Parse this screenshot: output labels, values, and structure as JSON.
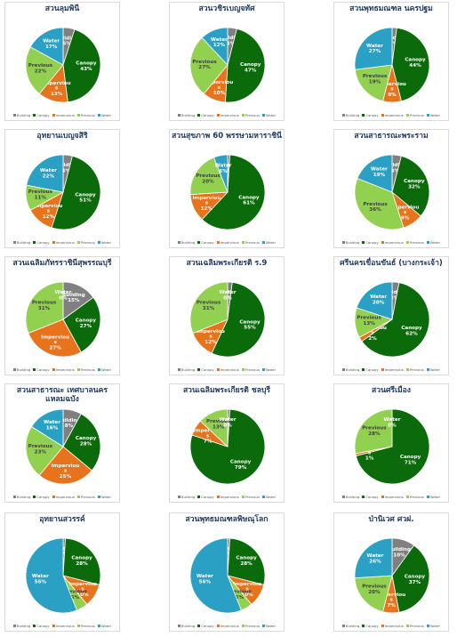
{
  "colors": {
    "Building": "#808080",
    "Canopy": "#0b6b0b",
    "Impervious": "#e8731d",
    "Previous": "#92d050",
    "Water": "#2aa1c4"
  },
  "legend_labels": [
    "Building",
    "Canopy",
    "Impervious",
    "Previous",
    "Water"
  ],
  "chart_data": [
    {
      "type": "pie",
      "title": "สวนลุมพินี",
      "slices": [
        {
          "name": "Building",
          "label": "Building",
          "pct_text": "5%",
          "value": 5
        },
        {
          "name": "Canopy",
          "label": "Canopy",
          "pct_text": "43%",
          "value": 43
        },
        {
          "name": "Impervious",
          "label": "Imperviou\ns",
          "pct_text": "13%",
          "value": 13
        },
        {
          "name": "Previous",
          "label": "Previous",
          "pct_text": "22%",
          "value": 22
        },
        {
          "name": "Water",
          "label": "Water",
          "pct_text": "17%",
          "value": 17
        }
      ]
    },
    {
      "type": "pie",
      "title": "สวนวชิรเบญจทัศ",
      "slices": [
        {
          "name": "Building",
          "label": "Building",
          "pct_text": "4%",
          "value": 4
        },
        {
          "name": "Canopy",
          "label": "Canopy",
          "pct_text": "47%",
          "value": 47
        },
        {
          "name": "Impervious",
          "label": "Imperviou\ns",
          "pct_text": "10%",
          "value": 10
        },
        {
          "name": "Previous",
          "label": "Previous",
          "pct_text": "27%",
          "value": 27
        },
        {
          "name": "Water",
          "label": "Water",
          "pct_text": "12%",
          "value": 12
        }
      ]
    },
    {
      "type": "pie",
      "title": "สวนพุทธมณฑล นครปฐม",
      "slices": [
        {
          "name": "Building",
          "label": "Building",
          "pct_text": "2%",
          "value": 2
        },
        {
          "name": "Canopy",
          "label": "Canopy",
          "pct_text": "44%",
          "value": 44
        },
        {
          "name": "Impervious",
          "label": "Imperviou\ns",
          "pct_text": "8%",
          "value": 8
        },
        {
          "name": "Previous",
          "label": "Previous",
          "pct_text": "19%",
          "value": 19
        },
        {
          "name": "Water",
          "label": "Water",
          "pct_text": "27%",
          "value": 27
        }
      ]
    },
    {
      "type": "pie",
      "title": "อุทยานเบญจสิริ",
      "slices": [
        {
          "name": "Building",
          "label": "Building",
          "pct_text": "4%",
          "value": 4
        },
        {
          "name": "Canopy",
          "label": "Canopy",
          "pct_text": "51%",
          "value": 51
        },
        {
          "name": "Impervious",
          "label": "Imperviou\ns",
          "pct_text": "12%",
          "value": 12
        },
        {
          "name": "Previous",
          "label": "Previous",
          "pct_text": "11%",
          "value": 11
        },
        {
          "name": "Water",
          "label": "Water",
          "pct_text": "22%",
          "value": 22
        }
      ]
    },
    {
      "type": "pie",
      "title": "สวนสุขภาพ 60 พรรษามหาราชินี",
      "slices": [
        {
          "name": "Building",
          "label": "Building",
          "pct_text": "1%",
          "value": 1
        },
        {
          "name": "Canopy",
          "label": "Canopy",
          "pct_text": "61%",
          "value": 61
        },
        {
          "name": "Impervious",
          "label": "Imperviou\ns",
          "pct_text": "12%",
          "value": 12
        },
        {
          "name": "Previous",
          "label": "Previous",
          "pct_text": "20%",
          "value": 20
        },
        {
          "name": "Water",
          "label": "Water",
          "pct_text": "6%",
          "value": 6
        }
      ]
    },
    {
      "type": "pie",
      "title": "สวนสาธารณะพระราม",
      "slices": [
        {
          "name": "Building",
          "label": "Building",
          "pct_text": "4%",
          "value": 4
        },
        {
          "name": "Canopy",
          "label": "Canopy",
          "pct_text": "32%",
          "value": 32
        },
        {
          "name": "Impervious",
          "label": "Imperviou\ns",
          "pct_text": "9%",
          "value": 9
        },
        {
          "name": "Previous",
          "label": "Previous",
          "pct_text": "36%",
          "value": 36
        },
        {
          "name": "Water",
          "label": "Water",
          "pct_text": "19%",
          "value": 19
        }
      ]
    },
    {
      "type": "pie",
      "title": "สวนเฉลิมภัทรราชินีสุพรรณบุรี",
      "slices": [
        {
          "name": "Building",
          "label": "Building",
          "pct_text": "15%",
          "value": 15
        },
        {
          "name": "Canopy",
          "label": "Canopy",
          "pct_text": "27%",
          "value": 27
        },
        {
          "name": "Impervious",
          "label": "Imperviou\ns",
          "pct_text": "27%",
          "value": 27
        },
        {
          "name": "Previous",
          "label": "Previous",
          "pct_text": "31%",
          "value": 31
        },
        {
          "name": "Water",
          "label": "Water",
          "pct_text": "0%",
          "value": 0
        }
      ]
    },
    {
      "type": "pie",
      "title": "สวนเฉลิมพระเกียรติ ร.9",
      "slices": [
        {
          "name": "Building",
          "label": "Building",
          "pct_text": "2%",
          "value": 2
        },
        {
          "name": "Canopy",
          "label": "Canopy",
          "pct_text": "55%",
          "value": 55
        },
        {
          "name": "Impervious",
          "label": "Imperviou\ns",
          "pct_text": "12%",
          "value": 12
        },
        {
          "name": "Previous",
          "label": "Previous",
          "pct_text": "31%",
          "value": 31
        },
        {
          "name": "Water",
          "label": "Water",
          "pct_text": "0%",
          "value": 0
        }
      ]
    },
    {
      "type": "pie",
      "title": "ศรีนครเขื่อนขันธ์ (บางกระเจ้า)",
      "slices": [
        {
          "name": "Building",
          "label": "Building",
          "pct_text": "3%",
          "value": 3
        },
        {
          "name": "Canopy",
          "label": "Canopy",
          "pct_text": "62%",
          "value": 62
        },
        {
          "name": "Impervious",
          "label": "Imperviou\ns",
          "pct_text": "2%",
          "value": 2
        },
        {
          "name": "Previous",
          "label": "Previous",
          "pct_text": "13%",
          "value": 13
        },
        {
          "name": "Water",
          "label": "Water",
          "pct_text": "20%",
          "value": 20
        }
      ]
    },
    {
      "type": "pie",
      "title": "สวนสาธารณะ เทศบาลนครแหลมฉบัง",
      "slices": [
        {
          "name": "Building",
          "label": "Building",
          "pct_text": "8%",
          "value": 8
        },
        {
          "name": "Canopy",
          "label": "Canopy",
          "pct_text": "28%",
          "value": 28
        },
        {
          "name": "Impervious",
          "label": "Imperviou\ns",
          "pct_text": "25%",
          "value": 25
        },
        {
          "name": "Previous",
          "label": "Previous",
          "pct_text": "23%",
          "value": 23
        },
        {
          "name": "Water",
          "label": "Water",
          "pct_text": "16%",
          "value": 16
        }
      ]
    },
    {
      "type": "pie",
      "title": "สวนเฉลิมพระเกียรติ ชลบุรี",
      "slices": [
        {
          "name": "Building",
          "label": "Building",
          "pct_text": "1%",
          "value": 1
        },
        {
          "name": "Canopy",
          "label": "Canopy",
          "pct_text": "79%",
          "value": 79
        },
        {
          "name": "Impervious",
          "label": "Imperviou\ns",
          "pct_text": "7%",
          "value": 7
        },
        {
          "name": "Previous",
          "label": "Previous",
          "pct_text": "13%",
          "value": 13
        },
        {
          "name": "Water",
          "label": "Water",
          "pct_text": "0%",
          "value": 0
        }
      ]
    },
    {
      "type": "pie",
      "title": "สวนศรีเมือง",
      "slices": [
        {
          "name": "Building",
          "label": "Building",
          "pct_text": "0%",
          "value": 0
        },
        {
          "name": "Canopy",
          "label": "Canopy",
          "pct_text": "71%",
          "value": 71
        },
        {
          "name": "Impervious",
          "label": "Imperviou\ns",
          "pct_text": "1%",
          "value": 1
        },
        {
          "name": "Previous",
          "label": "Previous",
          "pct_text": "28%",
          "value": 28
        },
        {
          "name": "Water",
          "label": "Water",
          "pct_text": "0%",
          "value": 0
        }
      ]
    },
    {
      "type": "pie",
      "title": "อุทยานสวรรค์",
      "slices": [
        {
          "name": "Building",
          "label": "Building",
          "pct_text": "1%",
          "value": 1
        },
        {
          "name": "Canopy",
          "label": "Canopy",
          "pct_text": "28%",
          "value": 28
        },
        {
          "name": "Impervious",
          "label": "Imperviou\ns",
          "pct_text": "10%",
          "value": 10
        },
        {
          "name": "Previous",
          "label": "Previous",
          "pct_text": "5%",
          "value": 5
        },
        {
          "name": "Water",
          "label": "Water",
          "pct_text": "56%",
          "value": 56
        }
      ]
    },
    {
      "type": "pie",
      "title": "สวนพุทธมณฑลพิษณุโลก",
      "slices": [
        {
          "name": "Building",
          "label": "Building",
          "pct_text": "1%",
          "value": 1
        },
        {
          "name": "Canopy",
          "label": "Canopy",
          "pct_text": "28%",
          "value": 28
        },
        {
          "name": "Impervious",
          "label": "Imperviou\ns",
          "pct_text": "10%",
          "value": 10
        },
        {
          "name": "Previous",
          "label": "Previous",
          "pct_text": "5%",
          "value": 5
        },
        {
          "name": "Water",
          "label": "Water",
          "pct_text": "56%",
          "value": 56
        }
      ]
    },
    {
      "type": "pie",
      "title": "ป่านิเวศ ศวฝ.",
      "slices": [
        {
          "name": "Building",
          "label": "Building",
          "pct_text": "10%",
          "value": 10
        },
        {
          "name": "Canopy",
          "label": "Canopy",
          "pct_text": "37%",
          "value": 37
        },
        {
          "name": "Impervious",
          "label": "Imperviou\ns",
          "pct_text": "7%",
          "value": 7
        },
        {
          "name": "Previous",
          "label": "Previous",
          "pct_text": "20%",
          "value": 20
        },
        {
          "name": "Water",
          "label": "Water",
          "pct_text": "26%",
          "value": 26
        }
      ]
    }
  ]
}
